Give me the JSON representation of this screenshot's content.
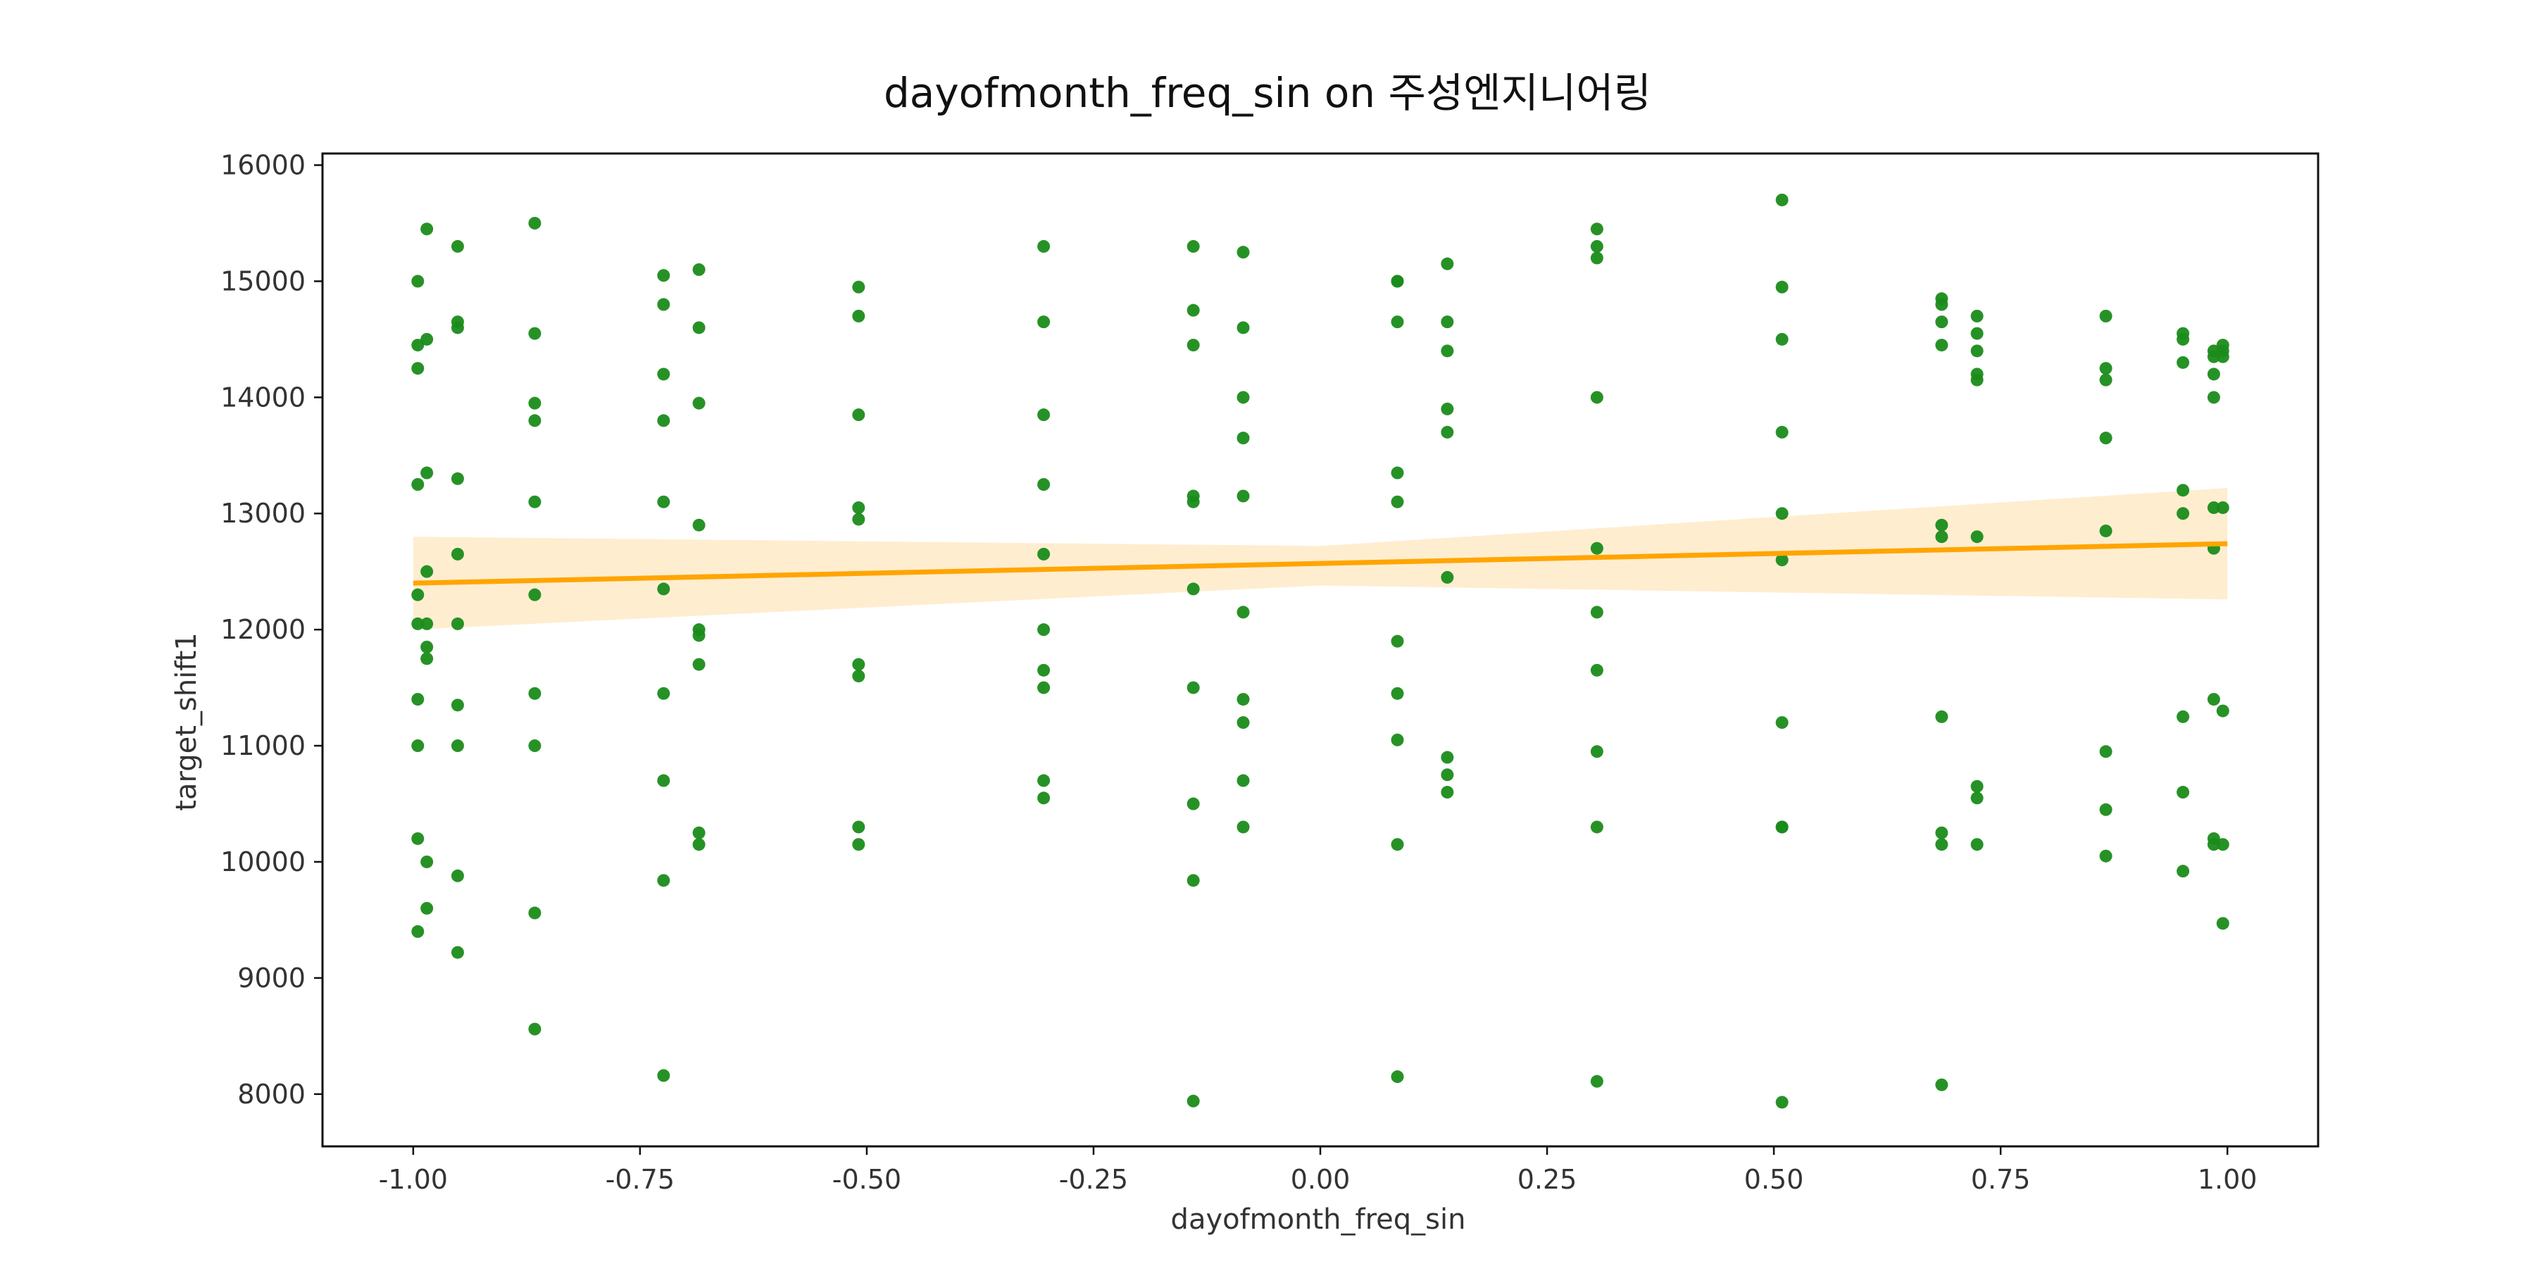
{
  "chart_data": {
    "type": "scatter",
    "title": "dayofmonth_freq_sin on 주성엔지니어링",
    "xlabel": "dayofmonth_freq_sin",
    "ylabel": "target_shift1",
    "xlim": [
      -1.1,
      1.1
    ],
    "ylim": [
      7550,
      16100
    ],
    "x_ticks": [
      -1.0,
      -0.75,
      -0.5,
      -0.25,
      0.0,
      0.25,
      0.5,
      0.75,
      1.0
    ],
    "x_tick_labels": [
      "-1.00",
      "-0.75",
      "-0.50",
      "-0.25",
      "0.00",
      "0.25",
      "0.50",
      "0.75",
      "1.00"
    ],
    "y_ticks": [
      8000,
      9000,
      10000,
      11000,
      12000,
      13000,
      14000,
      15000,
      16000
    ],
    "y_tick_labels": [
      "8000",
      "9000",
      "10000",
      "11000",
      "12000",
      "13000",
      "14000",
      "15000",
      "16000"
    ],
    "grid": false,
    "colors": {
      "points": "#1a8c1a",
      "regression_line": "#ffa500",
      "confidence_band": "#ffedd0"
    },
    "series": [
      {
        "points": [
          [
            -0.995,
            15000
          ],
          [
            -0.995,
            14450
          ],
          [
            -0.995,
            14250
          ],
          [
            -0.995,
            13250
          ],
          [
            -0.995,
            12300
          ],
          [
            -0.995,
            12050
          ],
          [
            -0.995,
            11400
          ],
          [
            -0.995,
            11000
          ],
          [
            -0.995,
            10200
          ],
          [
            -0.995,
            9400
          ],
          [
            -0.985,
            15450
          ],
          [
            -0.985,
            14500
          ],
          [
            -0.985,
            13350
          ],
          [
            -0.985,
            12500
          ],
          [
            -0.985,
            12050
          ],
          [
            -0.985,
            11850
          ],
          [
            -0.985,
            11750
          ],
          [
            -0.985,
            10000
          ],
          [
            -0.985,
            9600
          ],
          [
            -0.951,
            15300
          ],
          [
            -0.951,
            14650
          ],
          [
            -0.951,
            14600
          ],
          [
            -0.951,
            13300
          ],
          [
            -0.951,
            12650
          ],
          [
            -0.951,
            12050
          ],
          [
            -0.951,
            11350
          ],
          [
            -0.951,
            11000
          ],
          [
            -0.951,
            9880
          ],
          [
            -0.951,
            9220
          ],
          [
            -0.866,
            15500
          ],
          [
            -0.866,
            14550
          ],
          [
            -0.866,
            13950
          ],
          [
            -0.866,
            13800
          ],
          [
            -0.866,
            13100
          ],
          [
            -0.866,
            12300
          ],
          [
            -0.866,
            11450
          ],
          [
            -0.866,
            11000
          ],
          [
            -0.866,
            9560
          ],
          [
            -0.866,
            8560
          ],
          [
            -0.724,
            15050
          ],
          [
            -0.724,
            14800
          ],
          [
            -0.724,
            14200
          ],
          [
            -0.724,
            13800
          ],
          [
            -0.724,
            13100
          ],
          [
            -0.724,
            12350
          ],
          [
            -0.724,
            11450
          ],
          [
            -0.724,
            10700
          ],
          [
            -0.724,
            9840
          ],
          [
            -0.724,
            8160
          ],
          [
            -0.685,
            15100
          ],
          [
            -0.685,
            14600
          ],
          [
            -0.685,
            13950
          ],
          [
            -0.685,
            12900
          ],
          [
            -0.685,
            12000
          ],
          [
            -0.685,
            11950
          ],
          [
            -0.685,
            11700
          ],
          [
            -0.685,
            10250
          ],
          [
            -0.685,
            10150
          ],
          [
            -0.509,
            14950
          ],
          [
            -0.509,
            14700
          ],
          [
            -0.509,
            13850
          ],
          [
            -0.509,
            13050
          ],
          [
            -0.509,
            12950
          ],
          [
            -0.509,
            11700
          ],
          [
            -0.509,
            11600
          ],
          [
            -0.509,
            10300
          ],
          [
            -0.509,
            10150
          ],
          [
            -0.305,
            15300
          ],
          [
            -0.305,
            14650
          ],
          [
            -0.305,
            13850
          ],
          [
            -0.305,
            13250
          ],
          [
            -0.305,
            12650
          ],
          [
            -0.305,
            12000
          ],
          [
            -0.305,
            11650
          ],
          [
            -0.305,
            11500
          ],
          [
            -0.305,
            10700
          ],
          [
            -0.305,
            10550
          ],
          [
            -0.14,
            15300
          ],
          [
            -0.14,
            14750
          ],
          [
            -0.14,
            14450
          ],
          [
            -0.14,
            13150
          ],
          [
            -0.14,
            13100
          ],
          [
            -0.14,
            12350
          ],
          [
            -0.14,
            11500
          ],
          [
            -0.14,
            10500
          ],
          [
            -0.14,
            9840
          ],
          [
            -0.14,
            7940
          ],
          [
            -0.085,
            15250
          ],
          [
            -0.085,
            14600
          ],
          [
            -0.085,
            14000
          ],
          [
            -0.085,
            13650
          ],
          [
            -0.085,
            13150
          ],
          [
            -0.085,
            12150
          ],
          [
            -0.085,
            11400
          ],
          [
            -0.085,
            11200
          ],
          [
            -0.085,
            10700
          ],
          [
            -0.085,
            10300
          ],
          [
            0.085,
            15000
          ],
          [
            0.085,
            15000
          ],
          [
            0.085,
            14650
          ],
          [
            0.085,
            13350
          ],
          [
            0.085,
            13100
          ],
          [
            0.085,
            11900
          ],
          [
            0.085,
            11450
          ],
          [
            0.085,
            11050
          ],
          [
            0.085,
            10150
          ],
          [
            0.085,
            8150
          ],
          [
            0.14,
            15150
          ],
          [
            0.14,
            14650
          ],
          [
            0.14,
            14400
          ],
          [
            0.14,
            13900
          ],
          [
            0.14,
            13700
          ],
          [
            0.14,
            12450
          ],
          [
            0.14,
            10900
          ],
          [
            0.14,
            10750
          ],
          [
            0.14,
            10600
          ],
          [
            0.305,
            15450
          ],
          [
            0.305,
            15300
          ],
          [
            0.305,
            15200
          ],
          [
            0.305,
            14000
          ],
          [
            0.305,
            12700
          ],
          [
            0.305,
            12150
          ],
          [
            0.305,
            11650
          ],
          [
            0.305,
            10950
          ],
          [
            0.305,
            10300
          ],
          [
            0.305,
            8110
          ],
          [
            0.509,
            15700
          ],
          [
            0.509,
            14950
          ],
          [
            0.509,
            14500
          ],
          [
            0.509,
            13700
          ],
          [
            0.509,
            13000
          ],
          [
            0.509,
            12600
          ],
          [
            0.509,
            11200
          ],
          [
            0.509,
            10300
          ],
          [
            0.509,
            10300
          ],
          [
            0.509,
            7930
          ],
          [
            0.685,
            14850
          ],
          [
            0.685,
            14800
          ],
          [
            0.685,
            14650
          ],
          [
            0.685,
            14450
          ],
          [
            0.685,
            12900
          ],
          [
            0.685,
            12800
          ],
          [
            0.685,
            11250
          ],
          [
            0.685,
            10250
          ],
          [
            0.685,
            10150
          ],
          [
            0.685,
            8080
          ],
          [
            0.724,
            14700
          ],
          [
            0.724,
            14550
          ],
          [
            0.724,
            14400
          ],
          [
            0.724,
            14200
          ],
          [
            0.724,
            14150
          ],
          [
            0.724,
            12800
          ],
          [
            0.724,
            10650
          ],
          [
            0.724,
            10550
          ],
          [
            0.724,
            10150
          ],
          [
            0.866,
            14700
          ],
          [
            0.866,
            14250
          ],
          [
            0.866,
            14150
          ],
          [
            0.866,
            13650
          ],
          [
            0.866,
            12850
          ],
          [
            0.866,
            10950
          ],
          [
            0.866,
            10450
          ],
          [
            0.866,
            10050
          ],
          [
            0.951,
            14550
          ],
          [
            0.951,
            14500
          ],
          [
            0.951,
            14300
          ],
          [
            0.951,
            13200
          ],
          [
            0.951,
            13000
          ],
          [
            0.951,
            11250
          ],
          [
            0.951,
            10600
          ],
          [
            0.951,
            9920
          ],
          [
            0.985,
            14400
          ],
          [
            0.985,
            14350
          ],
          [
            0.985,
            14200
          ],
          [
            0.985,
            14000
          ],
          [
            0.985,
            13050
          ],
          [
            0.985,
            12700
          ],
          [
            0.985,
            11400
          ],
          [
            0.985,
            10200
          ],
          [
            0.985,
            10150
          ],
          [
            0.995,
            14450
          ],
          [
            0.995,
            14400
          ],
          [
            0.995,
            14350
          ],
          [
            0.995,
            13050
          ],
          [
            0.995,
            11300
          ],
          [
            0.995,
            10150
          ],
          [
            0.995,
            9470
          ]
        ]
      }
    ],
    "regression": {
      "x_range": [
        -1.0,
        1.0
      ],
      "y_start": 12400,
      "y_end": 12740,
      "ci_start": [
        12000,
        12800
      ],
      "ci_mid": [
        12380,
        12720
      ],
      "ci_end": [
        12260,
        13220
      ]
    }
  }
}
